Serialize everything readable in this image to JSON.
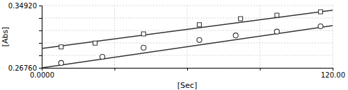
{
  "chart_data": {
    "type": "scatter",
    "title": "",
    "xlabel": "[Sec]",
    "ylabel": "[Abs]",
    "xlim": [
      0.0,
      120.0
    ],
    "ylim": [
      0.2676,
      0.3492
    ],
    "xticks": [
      {
        "value": 0.0,
        "label": "0.0000"
      },
      {
        "value": 30.0,
        "label": null
      },
      {
        "value": 60.0,
        "label": null
      },
      {
        "value": 90.0,
        "label": null
      },
      {
        "value": 120.0,
        "label": "120.00"
      }
    ],
    "yticks": [
      {
        "value": 0.2676,
        "label": "0.26760"
      },
      {
        "value": 0.28392,
        "label": null
      },
      {
        "value": 0.30024,
        "label": null
      },
      {
        "value": 0.31656,
        "label": null
      },
      {
        "value": 0.33288,
        "label": null
      },
      {
        "value": 0.3492,
        "label": "0.34920"
      }
    ],
    "grid": true,
    "series": [
      {
        "type": "line",
        "line_style": "solid",
        "color": "#333333",
        "x": [
          0.0,
          120.0
        ],
        "values": [
          0.293,
          0.343
        ]
      },
      {
        "type": "line",
        "line_style": "solid",
        "color": "#333333",
        "x": [
          0.0,
          120.0
        ],
        "values": [
          0.2676,
          0.323
        ]
      },
      {
        "type": "scatter",
        "marker": "square",
        "color": "#333333",
        "x": [
          8,
          22,
          42,
          65,
          82,
          97,
          115
        ],
        "values": [
          0.295,
          0.3,
          0.312,
          0.324,
          0.332,
          0.3365,
          0.341
        ]
      },
      {
        "type": "scatter",
        "marker": "circle",
        "color": "#333333",
        "x": [
          8,
          25,
          42,
          65,
          80,
          97,
          115
        ],
        "values": [
          0.274,
          0.282,
          0.294,
          0.304,
          0.31,
          0.315,
          0.322
        ]
      }
    ]
  }
}
